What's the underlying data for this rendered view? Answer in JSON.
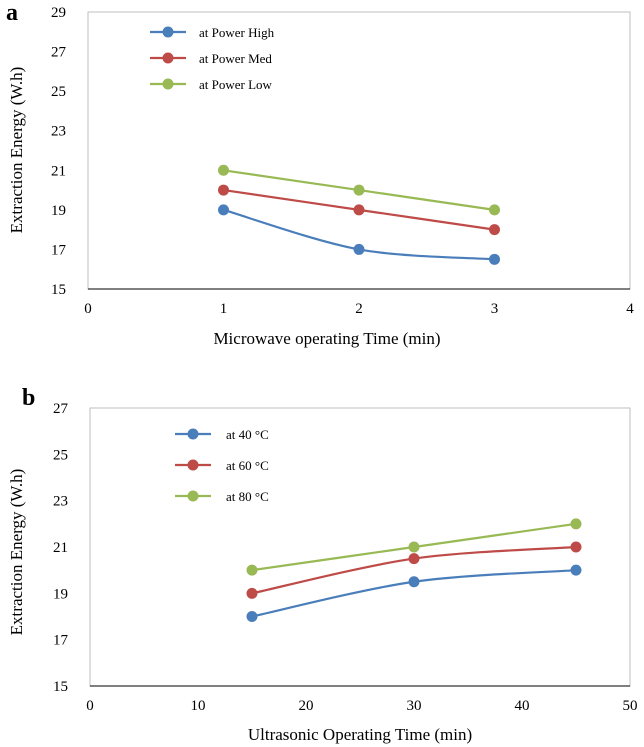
{
  "chart_data": [
    {
      "panel": "a",
      "type": "line",
      "xlabel": "Microwave  operating Time (min)",
      "ylabel": "Extraction Energy (W.h)",
      "xlim": [
        0,
        4
      ],
      "ylim": [
        15,
        29
      ],
      "xticks": [
        0,
        1,
        2,
        3,
        4
      ],
      "yticks": [
        15,
        17,
        19,
        21,
        23,
        25,
        27,
        29
      ],
      "x": [
        1,
        2,
        3
      ],
      "legend_position": "top-left",
      "series": [
        {
          "name": "at Power High",
          "color": "#4a7ebb",
          "values": [
            19,
            17,
            16.5
          ]
        },
        {
          "name": "at Power Med",
          "color": "#be4b48",
          "values": [
            20,
            19,
            18
          ]
        },
        {
          "name": "at Power Low",
          "color": "#98b954",
          "values": [
            21,
            20,
            19
          ]
        }
      ]
    },
    {
      "panel": "b",
      "type": "line",
      "xlabel": "Ultrasonic Operating Time (min)",
      "ylabel": "Extraction Energy (W.h)",
      "xlim": [
        0,
        50
      ],
      "ylim": [
        15,
        27
      ],
      "xticks": [
        0,
        10,
        20,
        30,
        40,
        50
      ],
      "yticks": [
        15,
        17,
        19,
        21,
        23,
        25,
        27
      ],
      "x": [
        15,
        30,
        45
      ],
      "legend_position": "top-left",
      "series": [
        {
          "name": "at 40 °C",
          "color": "#4a7ebb",
          "values": [
            18,
            19.5,
            20
          ]
        },
        {
          "name": "at 60 °C",
          "color": "#be4b48",
          "values": [
            19,
            20.5,
            21
          ]
        },
        {
          "name": "at 80 °C",
          "color": "#98b954",
          "values": [
            20,
            21,
            22
          ]
        }
      ]
    }
  ]
}
